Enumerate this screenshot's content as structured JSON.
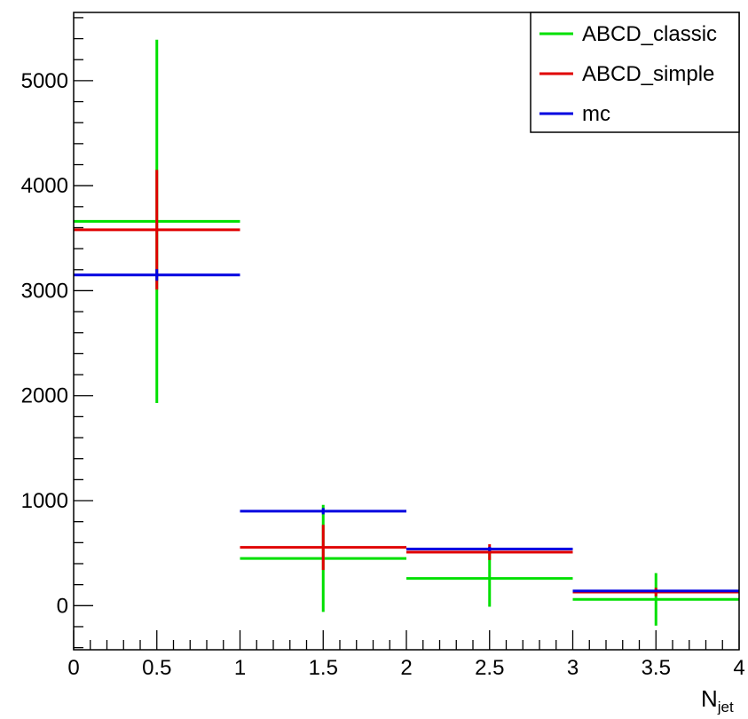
{
  "chart_data": {
    "type": "scatter",
    "title": "",
    "xlabel_main": "N",
    "xlabel_sub": "jet",
    "ylabel": "",
    "xlim": [
      0,
      4
    ],
    "ylim": [
      -420,
      5650
    ],
    "x_ticks": [
      0,
      0.5,
      1,
      1.5,
      2,
      2.5,
      3,
      3.5,
      4
    ],
    "x_tick_labels": [
      "0",
      "0.5",
      "1",
      "1.5",
      "2",
      "2.5",
      "3",
      "3.5",
      "4"
    ],
    "y_ticks": [
      0,
      1000,
      2000,
      3000,
      4000,
      5000
    ],
    "y_tick_labels": [
      "0",
      "1000",
      "2000",
      "3000",
      "4000",
      "5000"
    ],
    "grid": false,
    "legend_position": "top-right",
    "series": [
      {
        "name": "ABCD_classic",
        "color": "#00e000",
        "bins": [
          {
            "xlow": 0,
            "xhigh": 1,
            "x": 0.5,
            "y": 3660,
            "err": 1730
          },
          {
            "xlow": 1,
            "xhigh": 2,
            "x": 1.5,
            "y": 450,
            "err": 510
          },
          {
            "xlow": 2,
            "xhigh": 3,
            "x": 2.5,
            "y": 260,
            "err": 270
          },
          {
            "xlow": 3,
            "xhigh": 4,
            "x": 3.5,
            "y": 60,
            "err": 250
          }
        ]
      },
      {
        "name": "ABCD_simple",
        "color": "#e00000",
        "bins": [
          {
            "xlow": 0,
            "xhigh": 1,
            "x": 0.5,
            "y": 3580,
            "err": 570
          },
          {
            "xlow": 1,
            "xhigh": 2,
            "x": 1.5,
            "y": 555,
            "err": 215
          },
          {
            "xlow": 2,
            "xhigh": 3,
            "x": 2.5,
            "y": 510,
            "err": 75
          },
          {
            "xlow": 3,
            "xhigh": 4,
            "x": 3.5,
            "y": 130,
            "err": 40
          }
        ]
      },
      {
        "name": "mc",
        "color": "#0000e0",
        "bins": [
          {
            "xlow": 0,
            "xhigh": 1,
            "x": 0.5,
            "y": 3150,
            "err": 55
          },
          {
            "xlow": 1,
            "xhigh": 2,
            "x": 1.5,
            "y": 900,
            "err": 30
          },
          {
            "xlow": 2,
            "xhigh": 3,
            "x": 2.5,
            "y": 540,
            "err": 20
          },
          {
            "xlow": 3,
            "xhigh": 4,
            "x": 3.5,
            "y": 140,
            "err": 10
          }
        ]
      }
    ]
  }
}
